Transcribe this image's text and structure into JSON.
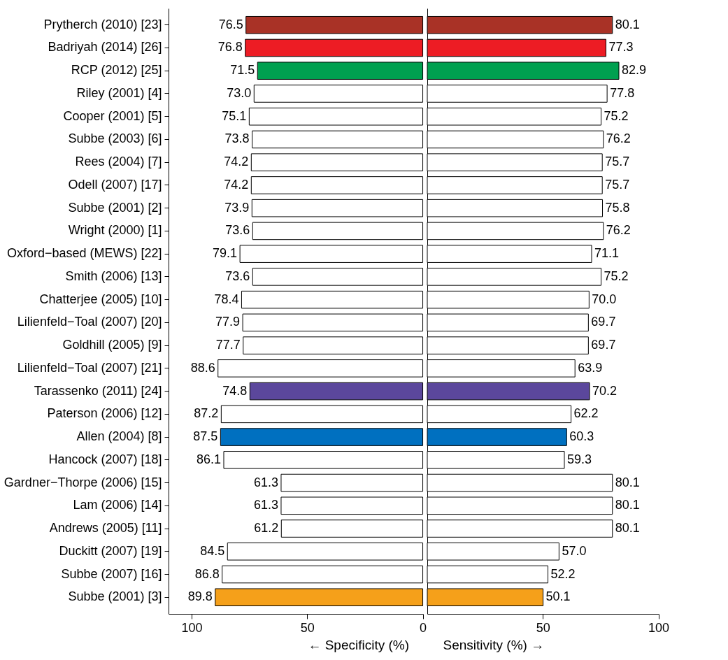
{
  "chart_data": [
    {
      "type": "bar",
      "orientation": "horizontal",
      "xlabel": "← Specificity (%)",
      "categories": [
        "Prytherch (2010) [23]",
        "Badriyah (2014) [26]",
        "RCP (2012) [25]",
        "Riley (2001) [4]",
        "Cooper (2001) [5]",
        "Subbe (2003) [6]",
        "Rees (2004) [7]",
        "Odell (2007) [17]",
        "Subbe (2001) [2]",
        "Wright (2000) [1]",
        "Oxford−based (MEWS) [22]",
        "Smith (2006) [13]",
        "Chatterjee (2005) [10]",
        "Lilienfeld−Toal (2007) [20]",
        "Goldhill (2005) [9]",
        "Lilienfeld−Toal (2007) [21]",
        "Tarassenko (2011) [24]",
        "Paterson (2006) [12]",
        "Allen (2004) [8]",
        "Hancock (2007) [18]",
        "Gardner−Thorpe (2006) [15]",
        "Lam (2006) [14]",
        "Andrews (2005) [11]",
        "Duckitt (2007) [19]",
        "Subbe (2007) [16]",
        "Subbe (2001) [3]"
      ],
      "values": [
        76.5,
        76.8,
        71.5,
        73.0,
        75.1,
        73.8,
        74.2,
        74.2,
        73.9,
        73.6,
        79.1,
        73.6,
        78.4,
        77.9,
        77.7,
        88.6,
        74.8,
        87.2,
        87.5,
        86.1,
        61.3,
        61.3,
        61.2,
        84.5,
        86.8,
        89.8
      ],
      "value_labels": [
        "76.5",
        "76.8",
        "71.5",
        "73.0",
        "75.1",
        "73.8",
        "74.2",
        "74.2",
        "73.9",
        "73.6",
        "79.1",
        "73.6",
        "78.4",
        "77.9",
        "77.7",
        "88.6",
        "74.8",
        "87.2",
        "87.5",
        "86.1",
        "61.3",
        "61.3",
        "61.2",
        "84.5",
        "86.8",
        "89.8"
      ],
      "colors": [
        "#a93226",
        "#ed1c24",
        "#00a050",
        "#ffffff",
        "#ffffff",
        "#ffffff",
        "#ffffff",
        "#ffffff",
        "#ffffff",
        "#ffffff",
        "#ffffff",
        "#ffffff",
        "#ffffff",
        "#ffffff",
        "#ffffff",
        "#ffffff",
        "#5b479c",
        "#ffffff",
        "#0070c0",
        "#ffffff",
        "#ffffff",
        "#ffffff",
        "#ffffff",
        "#ffffff",
        "#ffffff",
        "#f5a01a"
      ],
      "xlim": [
        110,
        0
      ],
      "xticks": [
        100,
        50,
        0
      ]
    },
    {
      "type": "bar",
      "orientation": "horizontal",
      "xlabel": "Sensitivity (%) →",
      "categories": [
        null,
        null,
        null,
        null,
        null,
        null,
        null,
        null,
        null,
        null,
        null,
        null,
        null,
        null,
        null,
        null,
        null,
        null,
        null,
        null,
        null,
        null,
        null,
        null,
        null,
        null
      ],
      "values": [
        80.1,
        77.3,
        82.9,
        77.8,
        75.2,
        76.2,
        75.7,
        75.7,
        75.8,
        76.2,
        71.1,
        75.2,
        70.0,
        69.7,
        69.7,
        63.9,
        70.2,
        62.2,
        60.3,
        59.3,
        80.1,
        80.1,
        80.1,
        57.0,
        52.2,
        50.1
      ],
      "value_labels": [
        "80.1",
        "77.3",
        "82.9",
        "77.8",
        "75.2",
        "76.2",
        "75.7",
        "75.7",
        "75.8",
        "76.2",
        "71.1",
        "75.2",
        "70.0",
        "69.7",
        "69.7",
        "63.9",
        "70.2",
        "62.2",
        "60.3",
        "59.3",
        "80.1",
        "80.1",
        "80.1",
        "57.0",
        "52.2",
        "50.1"
      ],
      "colors": [
        "#a93226",
        "#ed1c24",
        "#00a050",
        "#ffffff",
        "#ffffff",
        "#ffffff",
        "#ffffff",
        "#ffffff",
        "#ffffff",
        "#ffffff",
        "#ffffff",
        "#ffffff",
        "#ffffff",
        "#ffffff",
        "#ffffff",
        "#ffffff",
        "#5b479c",
        "#ffffff",
        "#0070c0",
        "#ffffff",
        "#ffffff",
        "#ffffff",
        "#ffffff",
        "#ffffff",
        "#ffffff",
        "#f5a01a"
      ],
      "xlim": [
        0,
        100
      ],
      "xticks": [
        50,
        100
      ]
    }
  ]
}
